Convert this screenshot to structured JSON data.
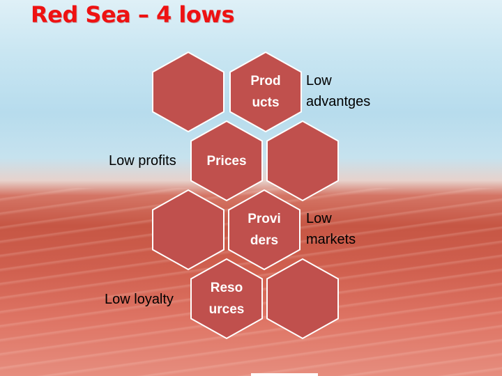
{
  "title": "Red Sea – 4 lows",
  "colors": {
    "hex_fill": "#c0504d",
    "hex_stroke": "#ffffff",
    "title": "#ee1212"
  },
  "hexagons": [
    {
      "label": ""
    },
    {
      "label": "Prod\nucts"
    },
    {
      "label": "Prices"
    },
    {
      "label": ""
    },
    {
      "label": ""
    },
    {
      "label": "Provi\nders"
    },
    {
      "label": "Reso\nurces"
    },
    {
      "label": ""
    }
  ],
  "side_labels": {
    "products": "Low\nadvantges",
    "prices": "Low profits",
    "providers": "Low\nmarkets",
    "resources": "Low loyalty"
  }
}
